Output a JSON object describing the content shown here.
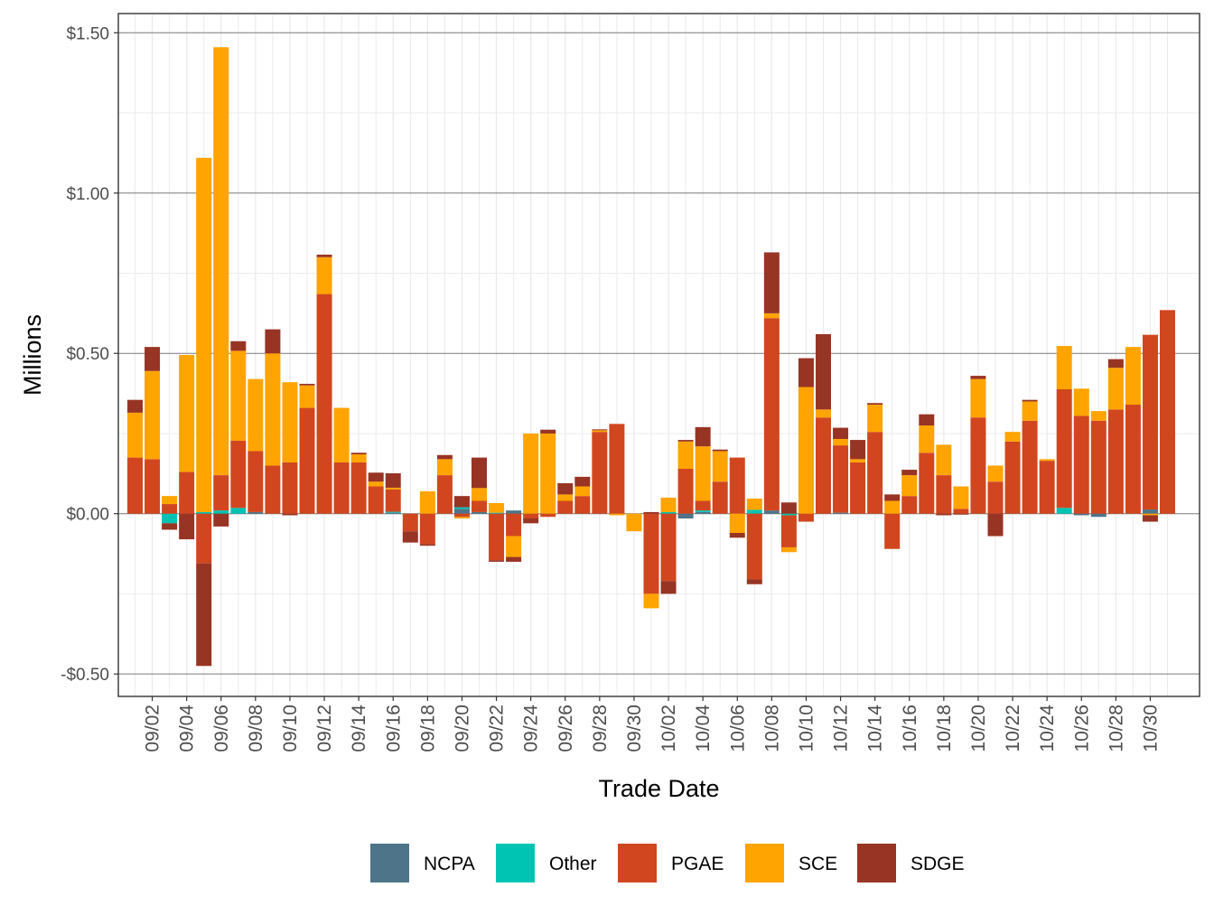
{
  "chart_data": {
    "type": "bar",
    "stacked": true,
    "xlabel": "Trade Date",
    "ylabel": "Millions",
    "ylim": [
      -0.57,
      1.56
    ],
    "y_ticks": [
      -0.5,
      0,
      0.5,
      1.0
    ],
    "y_ticks_all": [
      -0.5,
      0,
      0.5,
      1.0,
      1.5
    ],
    "y_tick_labels": [
      "-$0.50",
      "$0.00",
      "$0.50",
      "$1.00",
      "$1.50"
    ],
    "grid": true,
    "legend_position": "bottom",
    "categories": [
      "09/01",
      "09/02",
      "09/03",
      "09/04",
      "09/05",
      "09/06",
      "09/07",
      "09/08",
      "09/09",
      "09/10",
      "09/11",
      "09/12",
      "09/13",
      "09/14",
      "09/15",
      "09/16",
      "09/17",
      "09/18",
      "09/19",
      "09/20",
      "09/21",
      "09/22",
      "09/23",
      "09/24",
      "09/25",
      "09/26",
      "09/27",
      "09/28",
      "09/29",
      "09/30",
      "10/01",
      "10/02",
      "10/03",
      "10/04",
      "10/05",
      "10/06",
      "10/07",
      "10/08",
      "10/09",
      "10/10",
      "10/11",
      "10/12",
      "10/13",
      "10/14",
      "10/15",
      "10/16",
      "10/17",
      "10/18",
      "10/19",
      "10/20",
      "10/21",
      "10/22",
      "10/23",
      "10/24",
      "10/25",
      "10/26",
      "10/27",
      "10/28",
      "10/29",
      "10/30",
      "10/31"
    ],
    "x_tick_labels": [
      "09/02",
      "09/04",
      "09/06",
      "09/08",
      "09/10",
      "09/12",
      "09/14",
      "09/16",
      "09/18",
      "09/20",
      "09/22",
      "09/24",
      "09/26",
      "09/28",
      "09/30",
      "10/02",
      "10/04",
      "10/06",
      "10/08",
      "10/10",
      "10/12",
      "10/14",
      "10/16",
      "10/18",
      "10/20",
      "10/22",
      "10/24",
      "10/26",
      "10/28",
      "10/30"
    ],
    "series": [
      {
        "name": "NCPA",
        "color": "#4e7489",
        "values": [
          0,
          0,
          0,
          0,
          0,
          0,
          0,
          0.005,
          0,
          0,
          0,
          0,
          0,
          0,
          0,
          0.003,
          0,
          0,
          0,
          0.015,
          0.005,
          0,
          0.01,
          0,
          0,
          0,
          0,
          0,
          0,
          0,
          0,
          0,
          -0.015,
          0.005,
          0,
          0,
          0,
          0.01,
          0,
          0,
          0,
          0.003,
          0,
          0,
          0,
          0,
          0,
          0,
          0,
          0,
          0,
          0,
          0,
          0,
          0,
          -0.005,
          -0.01,
          0,
          0,
          0.013,
          0
        ]
      },
      {
        "name": "Other",
        "color": "#00c4b3",
        "values": [
          0,
          0,
          -0.03,
          0,
          0.005,
          0.01,
          0.018,
          0,
          0,
          0,
          0,
          0,
          0,
          0,
          0,
          0.003,
          0,
          0,
          0,
          0.005,
          0,
          0.003,
          0,
          0,
          0,
          0,
          0,
          0,
          0,
          0,
          0,
          0.005,
          0,
          0.005,
          0,
          0,
          0.012,
          0,
          -0.005,
          0,
          0,
          0,
          0,
          0,
          0,
          0,
          0,
          0,
          0,
          0,
          0,
          0,
          0,
          0,
          0.018,
          0,
          0,
          0,
          0,
          0,
          0
        ]
      },
      {
        "name": "PGAE",
        "color": "#d1461f",
        "values": [
          0.175,
          0.17,
          0.03,
          0.13,
          -0.155,
          0.11,
          0.21,
          0.19,
          0.15,
          0.16,
          0.33,
          0.685,
          0.16,
          0.16,
          0.085,
          0.07,
          -0.055,
          -0.095,
          0.12,
          -0.01,
          0.035,
          -0.145,
          -0.07,
          -0.015,
          -0.01,
          0.04,
          0.055,
          0.255,
          0.28,
          0,
          -0.25,
          -0.21,
          0.14,
          0.03,
          0.1,
          0.175,
          -0.205,
          0.6,
          -0.1,
          -0.025,
          0.3,
          0.21,
          0.16,
          0.255,
          -0.11,
          0.055,
          0.19,
          0.12,
          0.015,
          0.3,
          0.1,
          0.225,
          0.29,
          0.165,
          0.37,
          0.305,
          0.29,
          0.325,
          0.34,
          0.545,
          0.635
        ]
      },
      {
        "name": "SCE",
        "color": "#ffa400",
        "values": [
          0.14,
          0.275,
          0.025,
          0.365,
          1.105,
          1.335,
          0.28,
          0.225,
          0.35,
          0.25,
          0.07,
          0.115,
          0.17,
          0.025,
          0.015,
          0.005,
          0,
          0.07,
          0.05,
          -0.005,
          0.04,
          0.03,
          -0.065,
          0.25,
          0.25,
          0.02,
          0.03,
          0.005,
          -0.005,
          -0.055,
          -0.045,
          0.045,
          0.085,
          0.17,
          0.095,
          -0.06,
          0.035,
          0.015,
          -0.015,
          0.395,
          0.025,
          0.02,
          0.01,
          0.085,
          0.04,
          0.065,
          0.085,
          0.095,
          0.07,
          0.12,
          0.05,
          0.03,
          0.06,
          0.005,
          0.135,
          0.085,
          0.03,
          0.13,
          0.18,
          -0.005,
          0
        ]
      },
      {
        "name": "SDGE",
        "color": "#983424",
        "values": [
          0.04,
          0.075,
          -0.02,
          -0.08,
          -0.32,
          -0.04,
          0.03,
          0,
          0.075,
          -0.005,
          0.005,
          0.008,
          0,
          0.005,
          0.028,
          0.045,
          -0.035,
          -0.005,
          0.013,
          0.035,
          0.095,
          -0.005,
          -0.015,
          -0.015,
          0.012,
          0.035,
          0.03,
          0.003,
          0,
          0,
          0.005,
          -0.04,
          0.005,
          0.06,
          0.005,
          -0.015,
          -0.015,
          0.19,
          0.035,
          0.09,
          0.235,
          0.035,
          0.06,
          0.005,
          0.02,
          0.017,
          0.035,
          -0.005,
          -0.003,
          0.01,
          -0.07,
          0,
          0.005,
          0,
          0,
          0,
          0,
          0.027,
          0,
          -0.02,
          0
        ]
      }
    ]
  }
}
